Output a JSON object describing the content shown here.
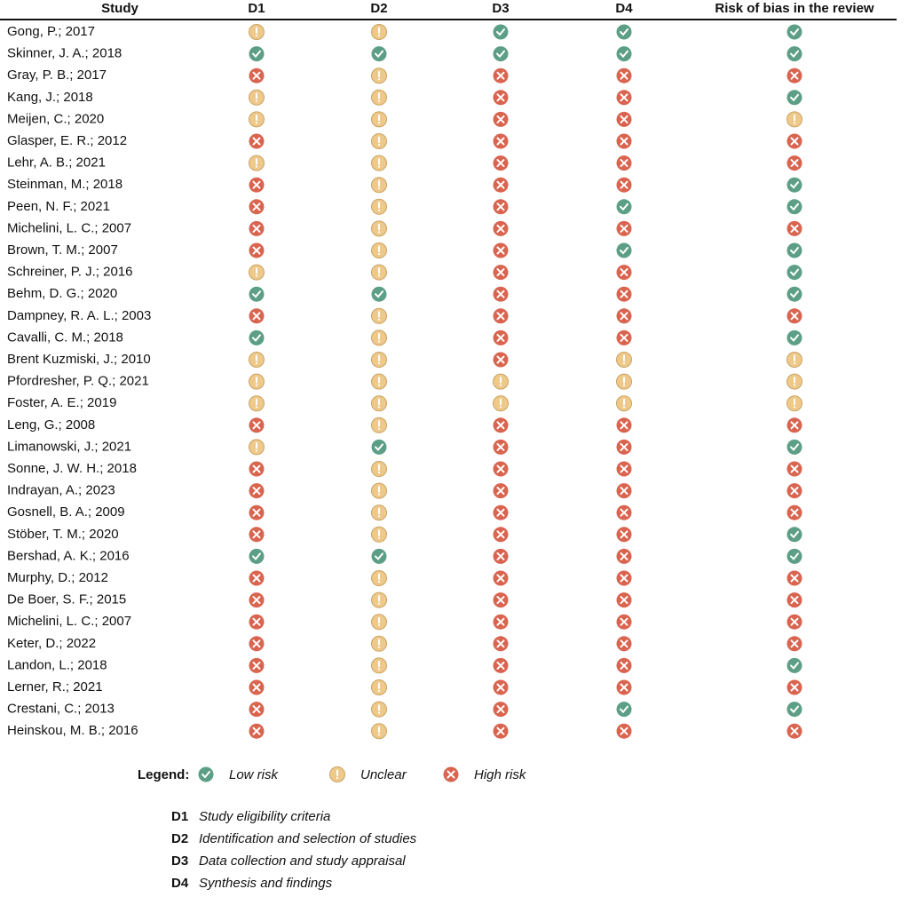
{
  "header": [
    "Study",
    "D1",
    "D2",
    "D3",
    "D4",
    "Risk of bias in the review"
  ],
  "rows": [
    {
      "study": "Gong, P.; 2017",
      "ratings": [
        1,
        1,
        0,
        0,
        0
      ]
    },
    {
      "study": "Skinner, J. A.; 2018",
      "ratings": [
        0,
        0,
        0,
        0,
        0
      ]
    },
    {
      "study": "Gray, P. B.; 2017",
      "ratings": [
        2,
        1,
        2,
        2,
        2
      ]
    },
    {
      "study": "Kang, J.; 2018",
      "ratings": [
        1,
        1,
        2,
        2,
        0
      ]
    },
    {
      "study": "Meijen, C.; 2020",
      "ratings": [
        1,
        1,
        2,
        2,
        1
      ]
    },
    {
      "study": "Glasper, E. R.; 2012",
      "ratings": [
        2,
        1,
        2,
        2,
        2
      ]
    },
    {
      "study": "Lehr, A. B.; 2021",
      "ratings": [
        1,
        1,
        2,
        2,
        2
      ]
    },
    {
      "study": "Steinman, M.; 2018",
      "ratings": [
        2,
        1,
        2,
        2,
        0
      ]
    },
    {
      "study": "Peen, N. F.; 2021",
      "ratings": [
        2,
        1,
        2,
        0,
        0
      ]
    },
    {
      "study": "Michelini, L. C.; 2007",
      "ratings": [
        2,
        1,
        2,
        2,
        2
      ]
    },
    {
      "study": "Brown, T. M.; 2007",
      "ratings": [
        2,
        1,
        2,
        0,
        0
      ]
    },
    {
      "study": "Schreiner, P. J.; 2016",
      "ratings": [
        1,
        1,
        2,
        2,
        0
      ]
    },
    {
      "study": "Behm, D. G.; 2020",
      "ratings": [
        0,
        0,
        2,
        2,
        0
      ]
    },
    {
      "study": "Dampney, R. A. L.; 2003",
      "ratings": [
        2,
        1,
        2,
        2,
        2
      ]
    },
    {
      "study": "Cavalli, C. M.; 2018",
      "ratings": [
        0,
        1,
        2,
        2,
        0
      ]
    },
    {
      "study": "Brent Kuzmiski, J.; 2010",
      "ratings": [
        1,
        1,
        2,
        1,
        1
      ]
    },
    {
      "study": "Pfordresher, P. Q.; 2021",
      "ratings": [
        1,
        1,
        1,
        1,
        1
      ]
    },
    {
      "study": "Foster, A. E.; 2019",
      "ratings": [
        1,
        1,
        1,
        1,
        1
      ]
    },
    {
      "study": "Leng, G.; 2008",
      "ratings": [
        2,
        1,
        2,
        2,
        2
      ]
    },
    {
      "study": "Limanowski, J.; 2021",
      "ratings": [
        1,
        0,
        2,
        2,
        0
      ]
    },
    {
      "study": "Sonne, J. W. H.; 2018",
      "ratings": [
        2,
        1,
        2,
        2,
        2
      ]
    },
    {
      "study": "Indrayan, A.; 2023",
      "ratings": [
        2,
        1,
        2,
        2,
        2
      ]
    },
    {
      "study": "Gosnell, B. A.; 2009",
      "ratings": [
        2,
        1,
        2,
        2,
        2
      ]
    },
    {
      "study": "Stöber, T. M.; 2020",
      "ratings": [
        2,
        1,
        2,
        2,
        0
      ]
    },
    {
      "study": "Bershad, A. K.; 2016",
      "ratings": [
        0,
        0,
        2,
        2,
        0
      ]
    },
    {
      "study": "Murphy, D.; 2012",
      "ratings": [
        2,
        1,
        2,
        2,
        2
      ]
    },
    {
      "study": "De Boer, S. F.; 2015",
      "ratings": [
        2,
        1,
        2,
        2,
        2
      ]
    },
    {
      "study": "Michelini, L. C.; 2007",
      "ratings": [
        2,
        1,
        2,
        2,
        2
      ]
    },
    {
      "study": "Keter, D.; 2022",
      "ratings": [
        2,
        1,
        2,
        2,
        2
      ]
    },
    {
      "study": "Landon, L.; 2018",
      "ratings": [
        2,
        1,
        2,
        2,
        0
      ]
    },
    {
      "study": "Lerner, R.; 2021",
      "ratings": [
        2,
        1,
        2,
        2,
        2
      ]
    },
    {
      "study": "Crestani, C.; 2013",
      "ratings": [
        2,
        1,
        2,
        0,
        0
      ]
    },
    {
      "study": "Heinskou, M. B.; 2016",
      "ratings": [
        2,
        1,
        2,
        2,
        2
      ]
    }
  ],
  "legend": {
    "title": "Legend:",
    "items": [
      {
        "label": "Low risk",
        "color": "#5c9f86"
      },
      {
        "label": "Unclear",
        "color": "#efc98a"
      },
      {
        "label": "High risk",
        "color": "#d9644f"
      }
    ]
  },
  "definitions": [
    {
      "code": "D1",
      "text": "Study eligibility criteria"
    },
    {
      "code": "D2",
      "text": "Identification and selection of studies"
    },
    {
      "code": "D3",
      "text": "Data collection and study appraisal"
    },
    {
      "code": "D4",
      "text": "Synthesis and findings"
    }
  ]
}
